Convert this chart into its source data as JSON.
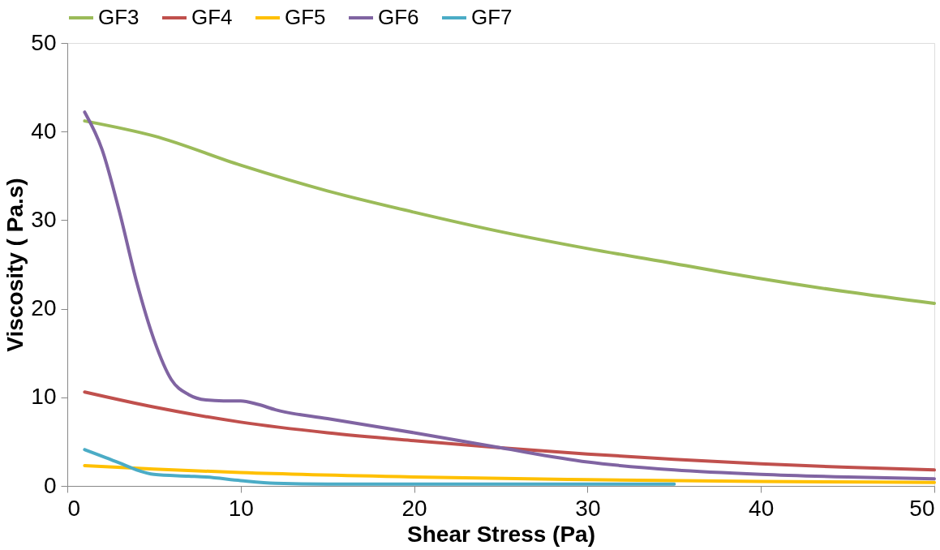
{
  "chart_data": {
    "type": "line",
    "xlabel": "Shear Stress (Pa)",
    "ylabel": "Viscosity ( Pa.s)",
    "xlim": [
      0,
      50
    ],
    "xticks": [
      0,
      10,
      20,
      30,
      40,
      50
    ],
    "ylim": [
      0,
      50
    ],
    "yticks": [
      0,
      10,
      20,
      30,
      40,
      50
    ],
    "grid": false,
    "legend": "top",
    "marker": "none",
    "line_style": "solid",
    "series": [
      {
        "name": "GF3",
        "color": "#9bbb59",
        "x": [
          1,
          5,
          10,
          15,
          20,
          25,
          30,
          35,
          40,
          45,
          50
        ],
        "values": [
          41.2,
          39.5,
          36.2,
          33.3,
          30.9,
          28.7,
          26.8,
          25.1,
          23.4,
          21.9,
          20.6
        ]
      },
      {
        "name": "GF4",
        "color": "#c0504d",
        "x": [
          1,
          5,
          10,
          15,
          20,
          25,
          30,
          35,
          40,
          45,
          50
        ],
        "values": [
          10.6,
          8.9,
          7.2,
          6.0,
          5.1,
          4.3,
          3.6,
          3.0,
          2.5,
          2.1,
          1.8
        ]
      },
      {
        "name": "GF5",
        "color": "#ffc000",
        "x": [
          1,
          5,
          10,
          20,
          30,
          40,
          50
        ],
        "values": [
          2.3,
          1.9,
          1.5,
          1.0,
          0.7,
          0.5,
          0.4
        ]
      },
      {
        "name": "GF6",
        "color": "#8064a2",
        "x": [
          1,
          2,
          3,
          4,
          5,
          6,
          7,
          8,
          9,
          10,
          11,
          12,
          15,
          20,
          25,
          30,
          35,
          40,
          45,
          50
        ],
        "values": [
          42.2,
          38,
          31,
          23,
          16.5,
          12,
          10.3,
          9.7,
          9.6,
          9.6,
          9.2,
          8.6,
          7.6,
          6.0,
          4.3,
          2.7,
          1.8,
          1.3,
          1.0,
          0.8
        ]
      },
      {
        "name": "GF7",
        "color": "#4bacc6",
        "x": [
          1,
          3,
          4,
          5,
          7,
          8,
          10,
          12,
          15,
          20,
          35
        ],
        "values": [
          4.1,
          2.6,
          1.8,
          1.3,
          1.1,
          1.0,
          0.6,
          0.3,
          0.2,
          0.2,
          0.2
        ]
      }
    ]
  }
}
